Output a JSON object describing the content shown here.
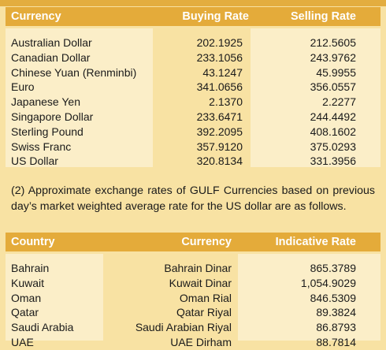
{
  "table1": {
    "headers": [
      "Currency",
      "Buying Rate",
      "Selling Rate"
    ],
    "rows": [
      [
        "Australian Dollar",
        "202.1925",
        "212.5605"
      ],
      [
        "Canadian Dollar",
        "233.1056",
        "243.9762"
      ],
      [
        "Chinese Yuan (Renminbi)",
        "43.1247",
        "45.9955"
      ],
      [
        "Euro",
        "341.0656",
        "356.0557"
      ],
      [
        "Japanese Yen",
        "2.1370",
        "2.2277"
      ],
      [
        "Singapore Dollar",
        "233.6471",
        "244.4492"
      ],
      [
        "Sterling Pound",
        "392.2095",
        "408.1602"
      ],
      [
        "Swiss Franc",
        "357.9120",
        "375.0293"
      ],
      [
        "US Dollar",
        "320.8134",
        "331.3956"
      ]
    ]
  },
  "note": "(2) Approximate exchange rates of GULF Currencies based on previous day’s market weighted average rate for the US dollar are as follows.",
  "table2": {
    "headers": [
      "Country",
      "Currency",
      "Indicative Rate"
    ],
    "rows": [
      [
        "Bahrain",
        "Bahrain Dinar",
        "865.3789"
      ],
      [
        "Kuwait",
        "Kuwait Dinar",
        "1,054.9029"
      ],
      [
        "Oman",
        "Oman Rial",
        "846.5309"
      ],
      [
        "Qatar",
        "Qatar Riyal",
        "89.3824"
      ],
      [
        "Saudi Arabia",
        "Saudi Arabian Riyal",
        "86.8793"
      ],
      [
        "UAE",
        "UAE Dirham",
        "88.7814"
      ]
    ]
  },
  "colors": {
    "header": "#e4ab3a",
    "background": "#f8e2a3",
    "column_shade": "#fbeec8"
  }
}
